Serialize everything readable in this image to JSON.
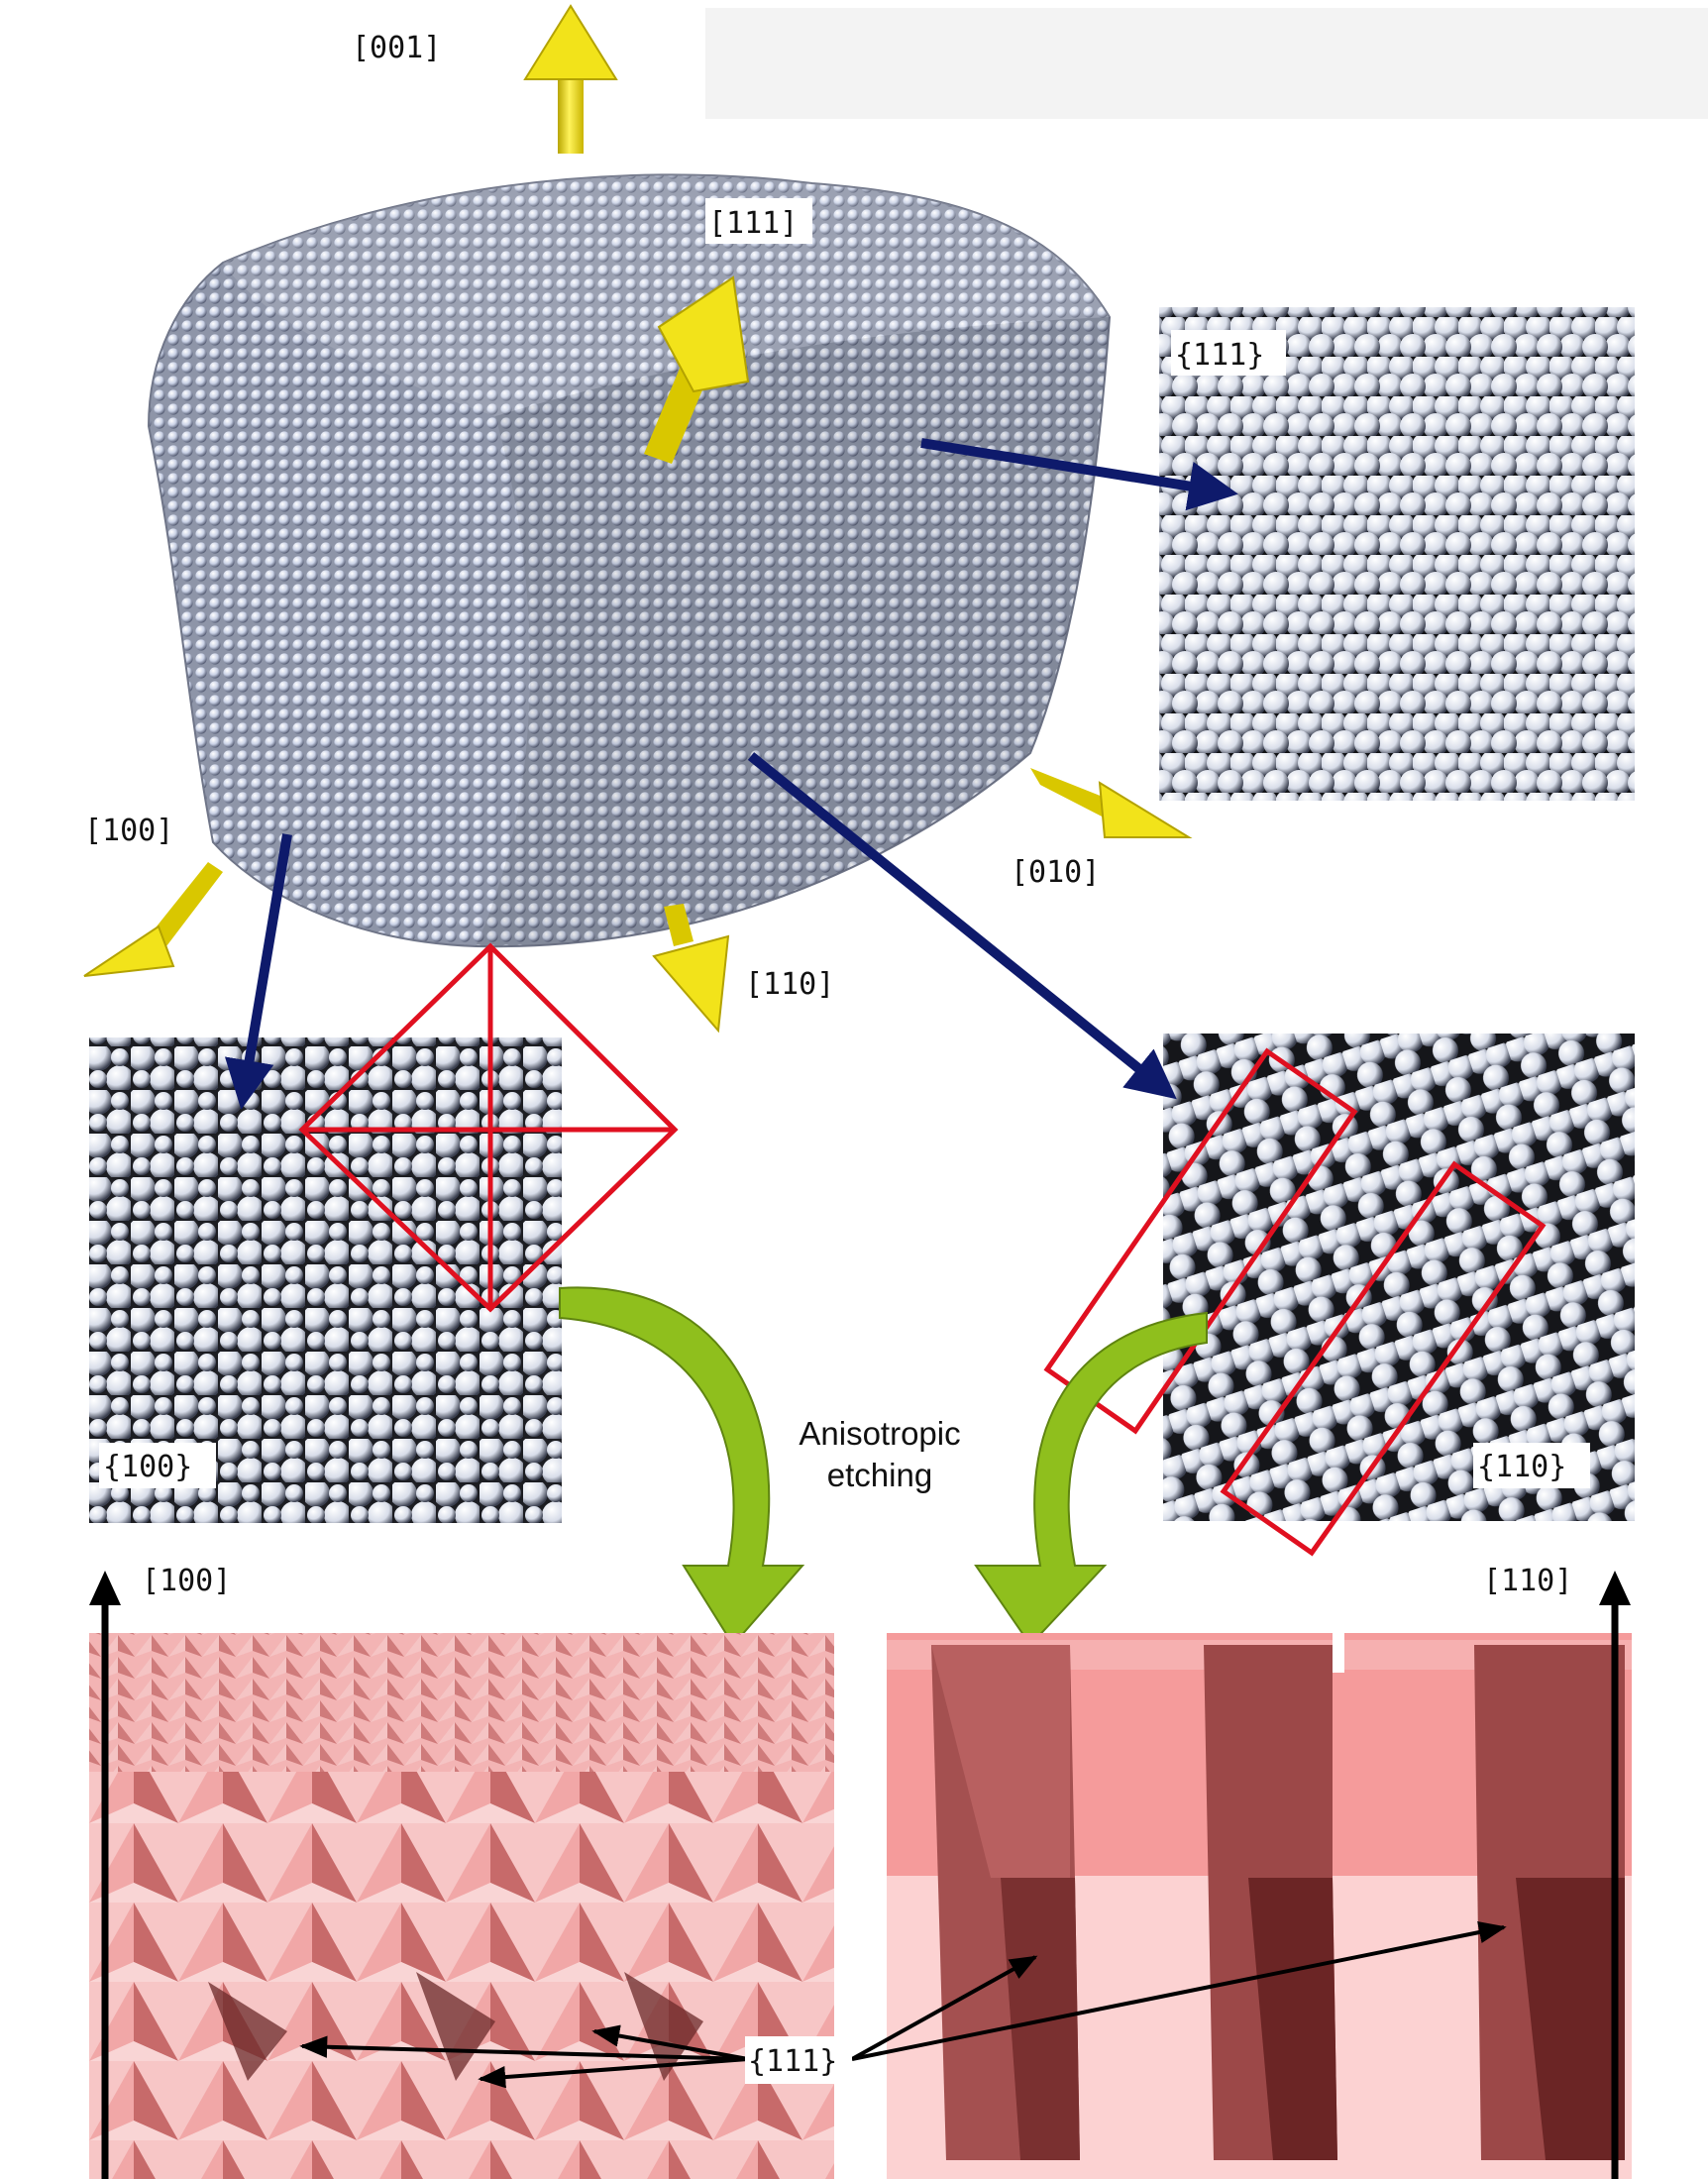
{
  "crystal": {
    "directions": {
      "d001": "[001]",
      "d111": "[111]",
      "d100": "[100]",
      "d010": "[010]",
      "d110": "[110]"
    }
  },
  "panels": {
    "p111": {
      "label": "{111}"
    },
    "p100": {
      "label": "{100}"
    },
    "p110": {
      "label": "{110}"
    }
  },
  "process": {
    "line1": "Anisotropic",
    "line2": "etching"
  },
  "surfaces": {
    "left_axis": "[100]",
    "right_axis": "[110]",
    "facet_label": "{111}"
  },
  "colors": {
    "axis_arrow": "#f2e31a",
    "mapping_arrow": "#0e1a6b",
    "etch_arrow": "#8fbf1d",
    "highlight": "#e01020",
    "etched_silicon": "#f4b6b6",
    "atom": "#c9d1e6"
  }
}
